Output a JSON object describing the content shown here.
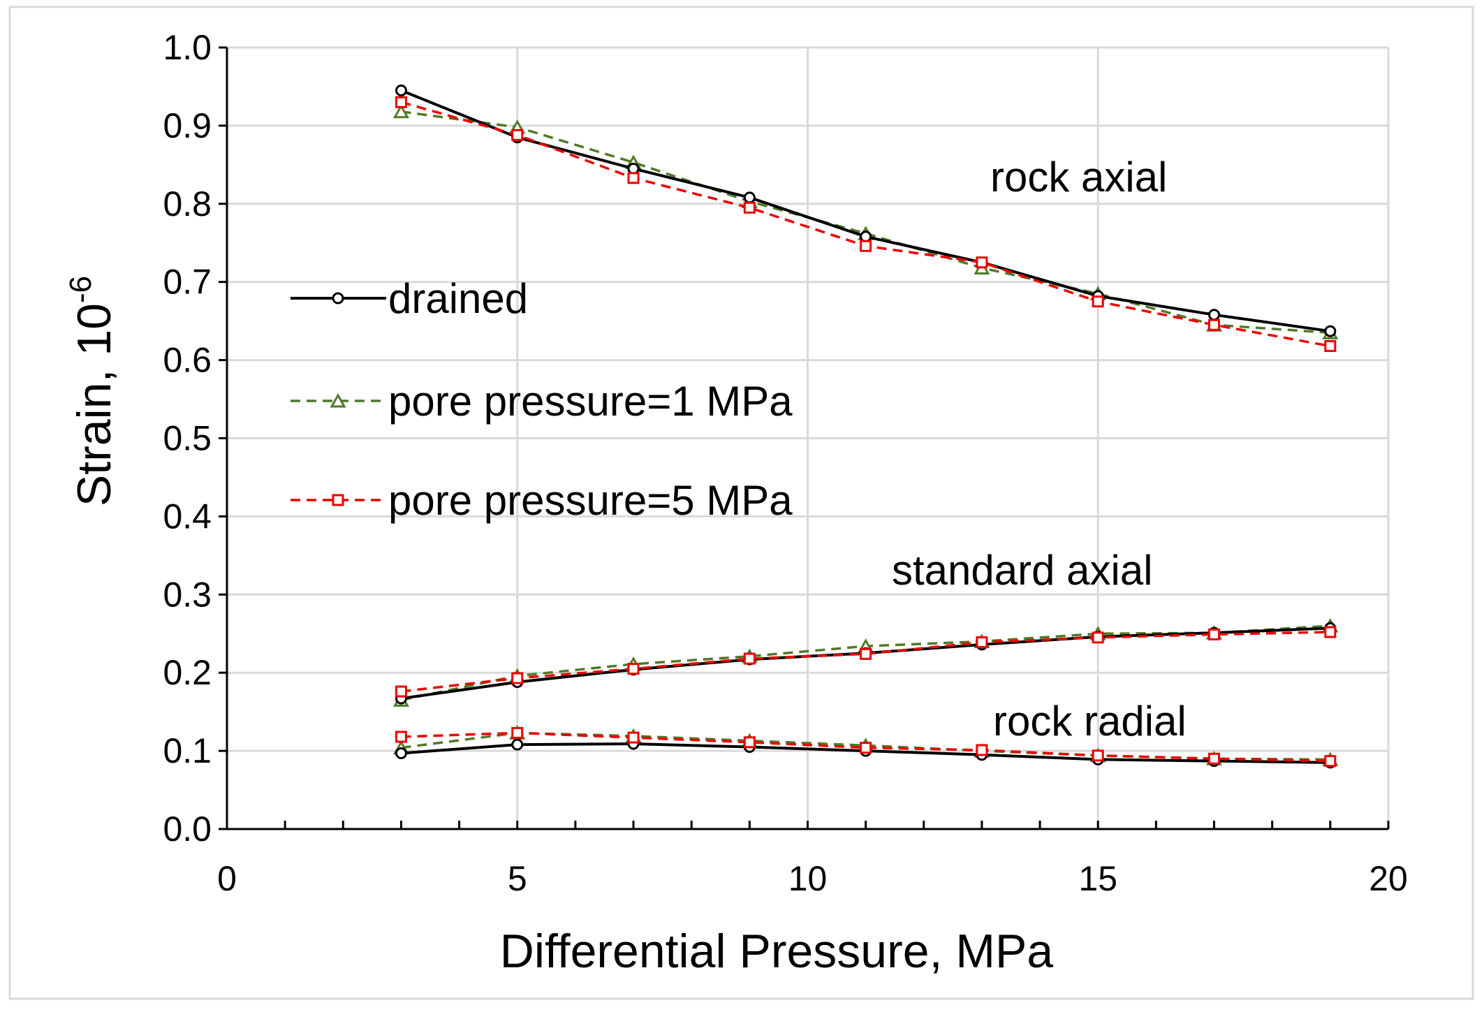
{
  "chart_data": {
    "type": "line",
    "title": "",
    "xlabel": "Differential Pressure, MPa",
    "ylabel": {
      "base": "Strain, 10",
      "exponent": "-6"
    },
    "xlim": [
      0,
      20
    ],
    "ylim": [
      0,
      1.0
    ],
    "x_major_ticks": [
      "0",
      "5",
      "10",
      "15",
      "20"
    ],
    "x_minor_tick_step": 1,
    "y_ticks": [
      "0.0",
      "0.1",
      "0.2",
      "0.3",
      "0.4",
      "0.5",
      "0.6",
      "0.7",
      "0.8",
      "0.9",
      "1.0"
    ],
    "grid": true,
    "legend_position": "left-center",
    "x": [
      3,
      5,
      7,
      9,
      11,
      13,
      15,
      17,
      19
    ],
    "series_styles": [
      {
        "key": "drained",
        "name": "drained",
        "color": "#000000",
        "dash": "solid",
        "marker": "circle"
      },
      {
        "key": "pp1",
        "name": "pore pressure=1 MPa",
        "color": "#4f7a28",
        "dash": "dashed",
        "marker": "triangle"
      },
      {
        "key": "pp5",
        "name": "pore pressure=5 MPa",
        "color": "#ee0000",
        "dash": "dashed",
        "marker": "square"
      }
    ],
    "groups": [
      {
        "name": "rock axial",
        "series": {
          "drained": [
            0.945,
            0.885,
            0.845,
            0.808,
            0.758,
            0.725,
            0.682,
            0.658,
            0.637
          ],
          "pp1": [
            0.918,
            0.898,
            0.853,
            0.803,
            0.762,
            0.718,
            0.685,
            0.645,
            0.635
          ],
          "pp5": [
            0.93,
            0.888,
            0.833,
            0.795,
            0.746,
            0.725,
            0.675,
            0.645,
            0.618
          ]
        }
      },
      {
        "name": "standard axial",
        "series": {
          "drained": [
            0.167,
            0.188,
            0.204,
            0.217,
            0.225,
            0.236,
            0.246,
            0.251,
            0.257
          ],
          "pp1": [
            0.165,
            0.196,
            0.211,
            0.221,
            0.234,
            0.24,
            0.25,
            0.251,
            0.26
          ],
          "pp5": [
            0.176,
            0.193,
            0.205,
            0.218,
            0.224,
            0.239,
            0.245,
            0.249,
            0.252
          ]
        }
      },
      {
        "name": "rock radial",
        "series": {
          "drained": [
            0.097,
            0.108,
            0.109,
            0.105,
            0.1,
            0.095,
            0.089,
            0.087,
            0.085
          ],
          "pp1": [
            0.104,
            0.123,
            0.119,
            0.113,
            0.107,
            0.1,
            0.094,
            0.09,
            0.089
          ],
          "pp5": [
            0.118,
            0.123,
            0.117,
            0.111,
            0.104,
            0.101,
            0.094,
            0.09,
            0.087
          ]
        }
      }
    ],
    "annotations": [
      "rock axial",
      "standard axial",
      "rock radial"
    ],
    "legend": [
      "drained",
      "pore pressure=1 MPa",
      "pore pressure=5 MPa"
    ]
  }
}
